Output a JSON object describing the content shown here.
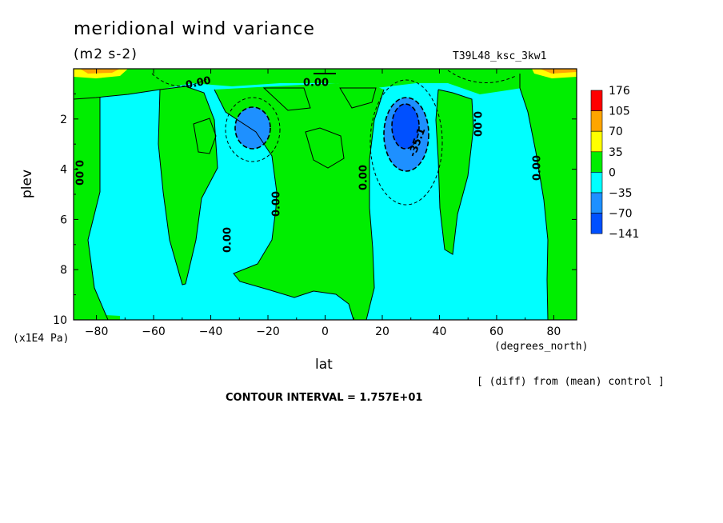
{
  "header": {
    "title": "meridional wind variance",
    "units": "(m2 s-2)",
    "run_label": "T39L48_ksc_3kw1"
  },
  "footer": {
    "diff_note": "[ (diff) from (mean) control ]",
    "contour_interval": "CONTOUR INTERVAL = 1.757E+01"
  },
  "chart_data": {
    "type": "contour",
    "title": "meridional wind variance",
    "units": "(m2 s-2)",
    "xlabel": "lat",
    "x_units": "(degrees_north)",
    "ylabel": "plev",
    "y_units": "(x1E4 Pa)",
    "xlim": [
      -88,
      88
    ],
    "ylim": [
      10,
      0
    ],
    "x_ticks": [
      -80,
      -60,
      -40,
      -20,
      0,
      20,
      40,
      60,
      80
    ],
    "y_ticks": [
      2,
      4,
      6,
      8,
      10
    ],
    "contour_interval": 17.57,
    "contour_labels": [
      "0.00",
      "0.00",
      "0.00",
      "0.00",
      "0.00",
      "0.00",
      "0.00",
      "0.00",
      "-35.1"
    ],
    "colorbar": {
      "levels": [
        "176",
        "105",
        "70",
        "35",
        "0",
        "−35",
        "−70",
        "−141"
      ],
      "colors": [
        "#ff0000",
        "#ffa500",
        "#ffff00",
        "#00ee00",
        "#00ffff",
        "#1e90ff",
        "#0050ff"
      ]
    }
  }
}
